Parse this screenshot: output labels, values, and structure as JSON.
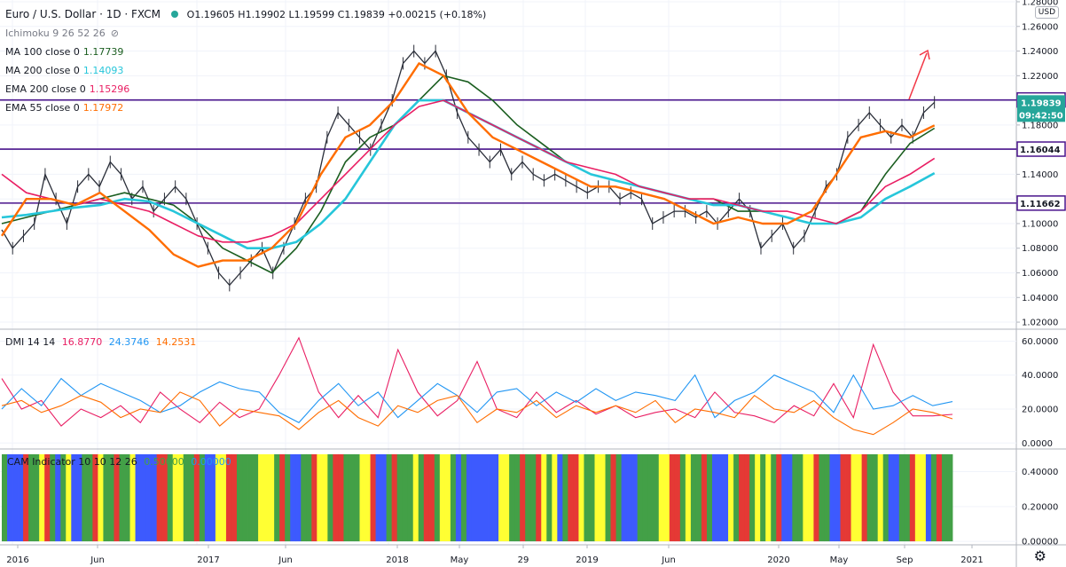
{
  "header": {
    "title": "Euro / U.S. Dollar · 1D · FXCM",
    "ohlc": "O1.19605 H1.19902 L1.19599 C1.19839 +0.00215 (+0.18%)",
    "indicators": [
      {
        "label": "Ichimoku 9 26 52 26",
        "value": "",
        "color": "#131722"
      },
      {
        "label": "MA 100 close 0",
        "value": "1.17739",
        "color": "#1b5e20"
      },
      {
        "label": "MA 200 close 0",
        "value": "1.14093",
        "color": "#26c6da"
      },
      {
        "label": "EMA 200 close 0",
        "value": "1.15296",
        "color": "#e91e63"
      },
      {
        "label": "EMA 55 close 0",
        "value": "1.17972",
        "color": "#ff6d00"
      }
    ],
    "dmi_label": "DMI 14 14",
    "dmi_values": [
      "16.8770",
      "24.3746",
      "14.2531"
    ],
    "cam_label": "CAM Indicator 10 10 12 26",
    "cam_values": [
      "0.50000",
      "0.00000"
    ]
  },
  "currency": "USD",
  "colors": {
    "ma100": "#1b5e20",
    "ma200": "#26c6da",
    "ema200": "#e91e63",
    "ema55": "#ff6d00",
    "plus_di": "#e91e63",
    "minus_di": "#2196f3",
    "adx": "#ff6d00",
    "hline": "#4a148c",
    "arrow": "#f23645"
  },
  "chart_data": [
    {
      "type": "line",
      "panel": "price",
      "title": "Euro / U.S. Dollar · 1D · FXCM",
      "x_labels": [
        "2016",
        "Jun",
        "2017",
        "Jun",
        "2018",
        "May",
        "29",
        "2019",
        "Jun",
        "2020",
        "May",
        "Sep",
        "2021"
      ],
      "y_ticks": [
        "1.28000",
        "1.26000",
        "1.24000",
        "1.22000",
        "1.20000",
        "1.18000",
        "1.16000",
        "1.14000",
        "1.12000",
        "1.10000",
        "1.08000",
        "1.06000",
        "1.04000",
        "1.02000"
      ],
      "ylim": [
        1.015,
        1.28
      ],
      "horizontal_levels": [
        1.20031,
        1.16044,
        1.11662
      ],
      "last_price": 1.19839,
      "countdown": "09:42:50",
      "price_path": [
        [
          0,
          1.095
        ],
        [
          2,
          1.08
        ],
        [
          4,
          1.09
        ],
        [
          6,
          1.1
        ],
        [
          8,
          1.14
        ],
        [
          10,
          1.12
        ],
        [
          12,
          1.1
        ],
        [
          14,
          1.13
        ],
        [
          16,
          1.14
        ],
        [
          18,
          1.13
        ],
        [
          20,
          1.15
        ],
        [
          22,
          1.14
        ],
        [
          24,
          1.12
        ],
        [
          26,
          1.13
        ],
        [
          28,
          1.11
        ],
        [
          30,
          1.12
        ],
        [
          32,
          1.13
        ],
        [
          34,
          1.12
        ],
        [
          36,
          1.1
        ],
        [
          38,
          1.08
        ],
        [
          40,
          1.06
        ],
        [
          42,
          1.05
        ],
        [
          44,
          1.06
        ],
        [
          46,
          1.07
        ],
        [
          48,
          1.08
        ],
        [
          50,
          1.06
        ],
        [
          52,
          1.08
        ],
        [
          54,
          1.1
        ],
        [
          56,
          1.12
        ],
        [
          58,
          1.13
        ],
        [
          60,
          1.17
        ],
        [
          62,
          1.19
        ],
        [
          64,
          1.18
        ],
        [
          66,
          1.17
        ],
        [
          68,
          1.16
        ],
        [
          70,
          1.18
        ],
        [
          72,
          1.2
        ],
        [
          74,
          1.23
        ],
        [
          76,
          1.24
        ],
        [
          78,
          1.23
        ],
        [
          80,
          1.24
        ],
        [
          82,
          1.22
        ],
        [
          84,
          1.19
        ],
        [
          86,
          1.17
        ],
        [
          88,
          1.16
        ],
        [
          90,
          1.15
        ],
        [
          92,
          1.16
        ],
        [
          94,
          1.14
        ],
        [
          96,
          1.15
        ],
        [
          98,
          1.14
        ],
        [
          100,
          1.135
        ],
        [
          102,
          1.14
        ],
        [
          104,
          1.135
        ],
        [
          106,
          1.13
        ],
        [
          108,
          1.125
        ],
        [
          110,
          1.13
        ],
        [
          112,
          1.13
        ],
        [
          114,
          1.12
        ],
        [
          116,
          1.125
        ],
        [
          118,
          1.12
        ],
        [
          120,
          1.1
        ],
        [
          122,
          1.105
        ],
        [
          124,
          1.11
        ],
        [
          126,
          1.11
        ],
        [
          128,
          1.105
        ],
        [
          130,
          1.11
        ],
        [
          132,
          1.1
        ],
        [
          134,
          1.11
        ],
        [
          136,
          1.12
        ],
        [
          138,
          1.11
        ],
        [
          140,
          1.08
        ],
        [
          142,
          1.09
        ],
        [
          144,
          1.1
        ],
        [
          146,
          1.08
        ],
        [
          148,
          1.09
        ],
        [
          150,
          1.11
        ],
        [
          152,
          1.13
        ],
        [
          154,
          1.14
        ],
        [
          156,
          1.17
        ],
        [
          158,
          1.18
        ],
        [
          160,
          1.19
        ],
        [
          162,
          1.18
        ],
        [
          164,
          1.17
        ],
        [
          166,
          1.18
        ],
        [
          168,
          1.17
        ],
        [
          170,
          1.19
        ],
        [
          172,
          1.19839
        ]
      ],
      "x_max": 175,
      "series": [
        {
          "name": "MA 100 close 0",
          "values": [
            1.1,
            1.105,
            1.11,
            1.115,
            1.12,
            1.125,
            1.12,
            1.115,
            1.1,
            1.08,
            1.07,
            1.06,
            1.08,
            1.11,
            1.15,
            1.17,
            1.18,
            1.2,
            1.22,
            1.215,
            1.2,
            1.18,
            1.165,
            1.15,
            1.14,
            1.135,
            1.13,
            1.125,
            1.12,
            1.12,
            1.11,
            1.11,
            1.105,
            1.1,
            1.1,
            1.11,
            1.14,
            1.165,
            1.17739
          ]
        },
        {
          "name": "MA 200 close 0",
          "values": [
            1.105,
            1.107,
            1.11,
            1.113,
            1.115,
            1.12,
            1.118,
            1.11,
            1.1,
            1.09,
            1.08,
            1.08,
            1.085,
            1.1,
            1.12,
            1.15,
            1.18,
            1.2,
            1.2,
            1.19,
            1.18,
            1.17,
            1.16,
            1.15,
            1.14,
            1.135,
            1.13,
            1.125,
            1.12,
            1.115,
            1.115,
            1.11,
            1.105,
            1.1,
            1.1,
            1.105,
            1.12,
            1.13,
            1.14093
          ]
        },
        {
          "name": "EMA 200 close 0",
          "values": [
            1.14,
            1.125,
            1.12,
            1.115,
            1.12,
            1.115,
            1.11,
            1.1,
            1.09,
            1.085,
            1.085,
            1.09,
            1.1,
            1.12,
            1.14,
            1.16,
            1.18,
            1.195,
            1.2,
            1.19,
            1.18,
            1.17,
            1.16,
            1.15,
            1.145,
            1.14,
            1.13,
            1.125,
            1.12,
            1.12,
            1.115,
            1.11,
            1.11,
            1.105,
            1.1,
            1.11,
            1.13,
            1.14,
            1.15296
          ]
        },
        {
          "name": "EMA 55 close 0",
          "values": [
            1.09,
            1.12,
            1.12,
            1.115,
            1.125,
            1.11,
            1.095,
            1.075,
            1.065,
            1.07,
            1.07,
            1.08,
            1.1,
            1.14,
            1.17,
            1.18,
            1.2,
            1.23,
            1.22,
            1.19,
            1.17,
            1.16,
            1.15,
            1.14,
            1.13,
            1.13,
            1.125,
            1.12,
            1.11,
            1.1,
            1.105,
            1.1,
            1.1,
            1.11,
            1.14,
            1.17,
            1.175,
            1.17,
            1.17972
          ]
        }
      ]
    },
    {
      "type": "line",
      "panel": "dmi",
      "title": "DMI 14 14",
      "y_ticks": [
        "60.0000",
        "40.0000",
        "20.0000",
        "0.0000"
      ],
      "ylim": [
        -3,
        66
      ],
      "series": [
        {
          "name": "+DI",
          "values": [
            38,
            20,
            25,
            10,
            20,
            15,
            22,
            12,
            30,
            20,
            12,
            24,
            15,
            20,
            40,
            62,
            30,
            15,
            28,
            15,
            55,
            30,
            16,
            25,
            48,
            20,
            15,
            30,
            18,
            25,
            17,
            22,
            15,
            18,
            20,
            15,
            30,
            18,
            16,
            12,
            22,
            16,
            35,
            15,
            58,
            30,
            16,
            16,
            16.877
          ]
        },
        {
          "name": "-DI",
          "values": [
            20,
            32,
            22,
            38,
            28,
            35,
            30,
            25,
            18,
            22,
            30,
            36,
            32,
            30,
            18,
            12,
            25,
            35,
            22,
            30,
            15,
            25,
            35,
            28,
            18,
            30,
            32,
            22,
            30,
            24,
            32,
            25,
            30,
            28,
            25,
            40,
            15,
            25,
            30,
            40,
            35,
            30,
            18,
            40,
            20,
            22,
            28,
            22,
            24.3746
          ]
        },
        {
          "name": "ADX",
          "values": [
            22,
            25,
            18,
            22,
            28,
            24,
            15,
            20,
            18,
            30,
            25,
            10,
            20,
            18,
            16,
            8,
            18,
            25,
            15,
            10,
            22,
            18,
            25,
            28,
            12,
            20,
            18,
            25,
            15,
            22,
            18,
            22,
            18,
            25,
            12,
            20,
            18,
            15,
            28,
            20,
            18,
            25,
            15,
            8,
            5,
            12,
            20,
            18,
            14.2531
          ]
        }
      ]
    },
    {
      "type": "heatmap",
      "panel": "cam",
      "title": "CAM Indicator 10 10 12 26",
      "y_ticks": [
        "0.40000",
        "0.20000",
        "0.00000"
      ],
      "ylim": [
        -0.02,
        0.52
      ],
      "bar_value": 0.5,
      "palette": {
        "G": "#43a047",
        "B": "#3d5afe",
        "Y": "#ffff33",
        "R": "#e53935"
      },
      "sequence": "GBBBRGGYRGBGYBBGGRYGGRGGYBBBBRRGYYGGRGBBYYRRGGGGYYYGRGBBGGRYYGRRGGGYYRBBGRGGGYGRRGYYGBGBBBBBBYYGGRGGRYGYBGRRYGGYYGRGBBBGGGGYYRRGYGGRGBBBYGRRGYGYGRBBGGYYRGGBBRRYYRGGYGBBGGRYYBGRGG"
    }
  ]
}
